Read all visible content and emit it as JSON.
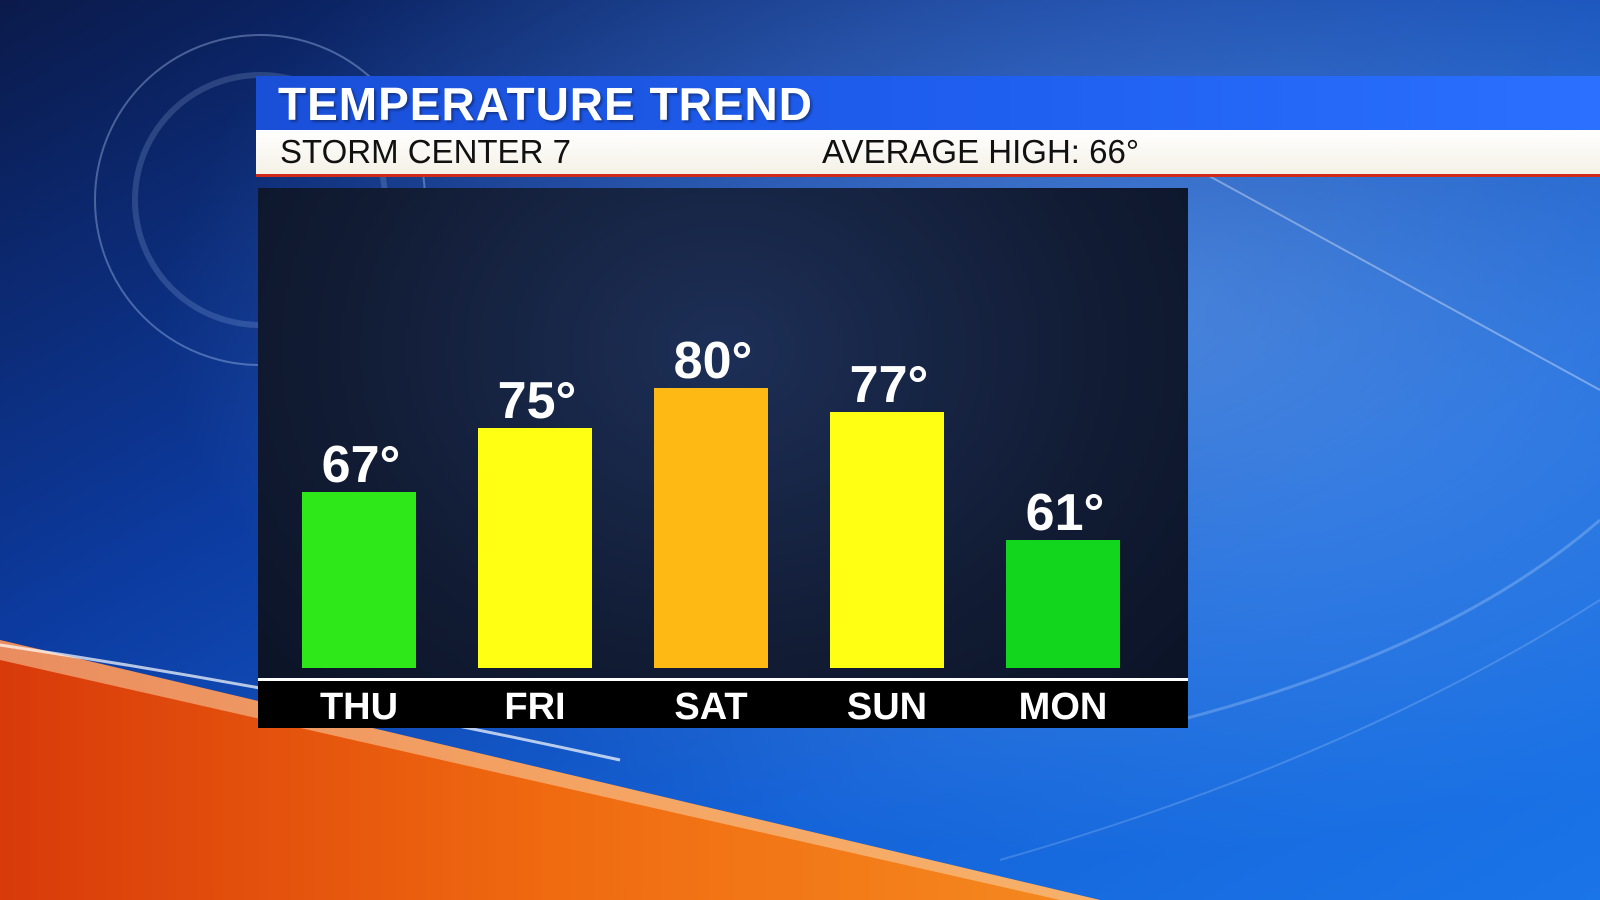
{
  "header": {
    "title": "TEMPERATURE TREND",
    "station": "STORM CENTER 7",
    "average_high": "AVERAGE HIGH: 66°"
  },
  "colors": {
    "green": "#2ee81a",
    "green_dark": "#12d61e",
    "yellow": "#ffff14",
    "orange": "#ffb914",
    "title_blue": "#1f5ff0",
    "accent_red": "#d22a1a"
  },
  "chart_data": {
    "type": "bar",
    "categories": [
      "THU",
      "FRI",
      "SAT",
      "SUN",
      "MON"
    ],
    "values": [
      67,
      75,
      80,
      77,
      61
    ],
    "labels": [
      "67°",
      "75°",
      "80°",
      "77°",
      "61°"
    ],
    "bar_colors": [
      "#2ee81a",
      "#ffff14",
      "#ffb914",
      "#ffff14",
      "#12d61e"
    ],
    "ylim": [
      45,
      80
    ]
  }
}
